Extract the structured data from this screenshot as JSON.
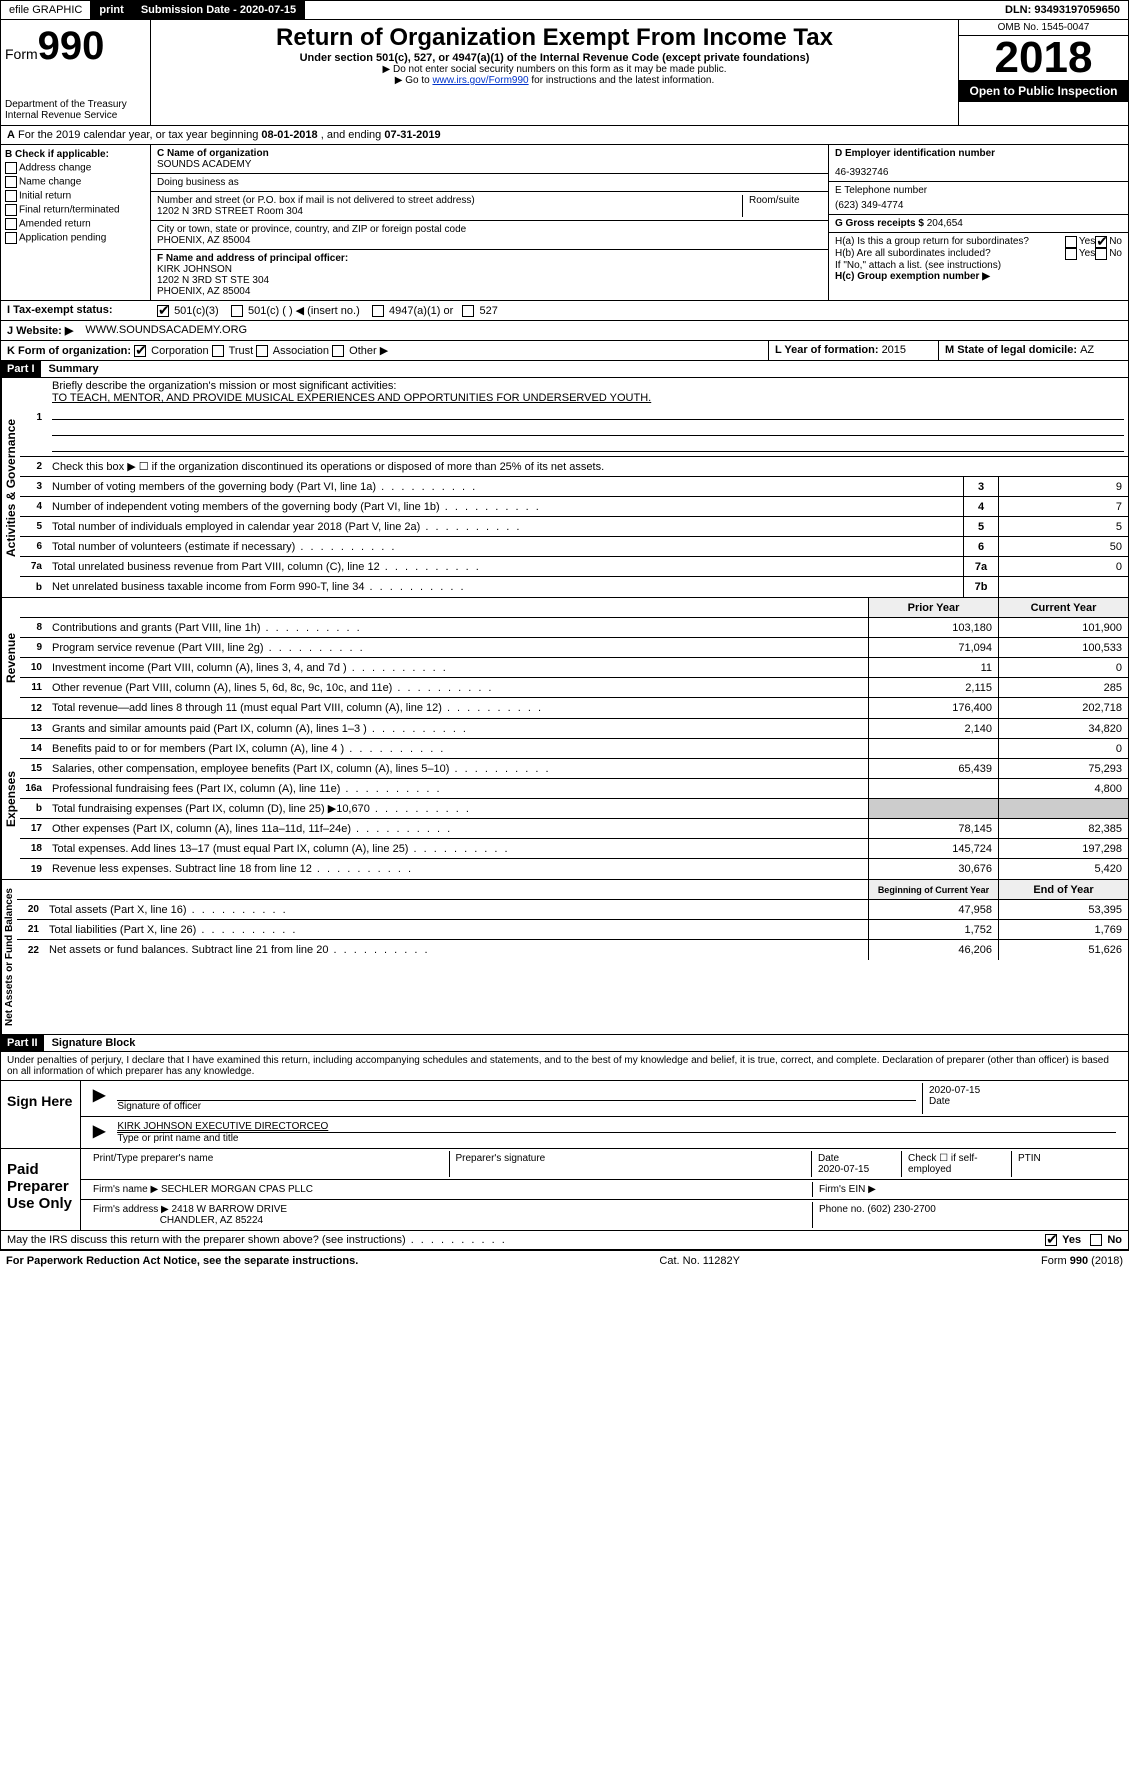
{
  "topbar": {
    "efile": "efile GRAPHIC",
    "print": "print",
    "sub_label": "Submission Date - 2020-07-15",
    "dln": "DLN: 93493197059650"
  },
  "header": {
    "form_word": "Form",
    "form_num": "990",
    "dept": "Department of the Treasury\nInternal Revenue Service",
    "title": "Return of Organization Exempt From Income Tax",
    "sub1": "Under section 501(c), 527, or 4947(a)(1) of the Internal Revenue Code (except private foundations)",
    "sub2": "▶ Do not enter social security numbers on this form as it may be made public.",
    "sub3a": "▶ Go to ",
    "sub3_link": "www.irs.gov/Form990",
    "sub3b": " for instructions and the latest information.",
    "omb": "OMB No. 1545-0047",
    "year": "2018",
    "open": "Open to Public Inspection"
  },
  "sectionA": {
    "text_a": "For the 2019 calendar year, or tax year beginning ",
    "begin": "08-01-2018",
    "text_b": " , and ending ",
    "end": "07-31-2019"
  },
  "checkB": {
    "hdr": "B Check if applicable:",
    "items": [
      "Address change",
      "Name change",
      "Initial return",
      "Final return/terminated",
      "Amended return",
      "Application pending"
    ]
  },
  "entity": {
    "c_label": "C Name of organization",
    "c_name": "SOUNDS ACADEMY",
    "dba_label": "Doing business as",
    "addr_label": "Number and street (or P.O. box if mail is not delivered to street address)",
    "room_label": "Room/suite",
    "addr": "1202 N 3RD STREET Room 304",
    "city_label": "City or town, state or province, country, and ZIP or foreign postal code",
    "city": "PHOENIX, AZ  85004",
    "f_label": "F Name and address of principal officer:",
    "f_name": "KIRK JOHNSON",
    "f_addr1": "1202 N 3RD ST STE 304",
    "f_addr2": "PHOENIX, AZ  85004"
  },
  "right": {
    "d_label": "D Employer identification number",
    "d_val": "46-3932746",
    "e_label": "E Telephone number",
    "e_val": "(623) 349-4774",
    "g_label": "G Gross receipts $ ",
    "g_val": "204,654",
    "ha_label": "H(a)  Is this a group return for subordinates?",
    "hb_label": "H(b)  Are all subordinates included?",
    "hb_note": "If \"No,\" attach a list. (see instructions)",
    "hc_label": "H(c)  Group exemption number ▶",
    "yes": "Yes",
    "no": "No"
  },
  "statusI": {
    "label": "I  Tax-exempt status:",
    "opt1": "501(c)(3)",
    "opt2": "501(c) (   ) ◀ (insert no.)",
    "opt3": "4947(a)(1) or",
    "opt4": "527"
  },
  "websiteJ": {
    "label": "J  Website: ▶",
    "val": "WWW.SOUNDSACADEMY.ORG"
  },
  "rowK": {
    "k_label": "K Form of organization:",
    "k_opts": [
      "Corporation",
      "Trust",
      "Association",
      "Other ▶"
    ],
    "l_label": "L Year of formation: ",
    "l_val": "2015",
    "m_label": "M State of legal domicile: ",
    "m_val": "AZ"
  },
  "part1": {
    "hdr": "Part I",
    "title": "Summary"
  },
  "gov": {
    "vlabel": "Activities & Governance",
    "l1_label": "Briefly describe the organization's mission or most significant activities:",
    "l1_val": "TO TEACH, MENTOR, AND PROVIDE MUSICAL EXPERIENCES AND OPPORTUNITIES FOR UNDERSERVED YOUTH.",
    "l2": "Check this box ▶ ☐  if the organization discontinued its operations or disposed of more than 25% of its net assets.",
    "rows": [
      {
        "n": "3",
        "t": "Number of voting members of the governing body (Part VI, line 1a)",
        "b": "3",
        "v": "9"
      },
      {
        "n": "4",
        "t": "Number of independent voting members of the governing body (Part VI, line 1b)",
        "b": "4",
        "v": "7"
      },
      {
        "n": "5",
        "t": "Total number of individuals employed in calendar year 2018 (Part V, line 2a)",
        "b": "5",
        "v": "5"
      },
      {
        "n": "6",
        "t": "Total number of volunteers (estimate if necessary)",
        "b": "6",
        "v": "50"
      },
      {
        "n": "7a",
        "t": "Total unrelated business revenue from Part VIII, column (C), line 12",
        "b": "7a",
        "v": "0"
      },
      {
        "n": "b",
        "t": "Net unrelated business taxable income from Form 990-T, line 34",
        "b": "7b",
        "v": ""
      }
    ]
  },
  "rev": {
    "vlabel": "Revenue",
    "hdr_prior": "Prior Year",
    "hdr_curr": "Current Year",
    "rows": [
      {
        "n": "8",
        "t": "Contributions and grants (Part VIII, line 1h)",
        "p": "103,180",
        "c": "101,900"
      },
      {
        "n": "9",
        "t": "Program service revenue (Part VIII, line 2g)",
        "p": "71,094",
        "c": "100,533"
      },
      {
        "n": "10",
        "t": "Investment income (Part VIII, column (A), lines 3, 4, and 7d )",
        "p": "11",
        "c": "0"
      },
      {
        "n": "11",
        "t": "Other revenue (Part VIII, column (A), lines 5, 6d, 8c, 9c, 10c, and 11e)",
        "p": "2,115",
        "c": "285"
      },
      {
        "n": "12",
        "t": "Total revenue—add lines 8 through 11 (must equal Part VIII, column (A), line 12)",
        "p": "176,400",
        "c": "202,718"
      }
    ]
  },
  "exp": {
    "vlabel": "Expenses",
    "rows": [
      {
        "n": "13",
        "t": "Grants and similar amounts paid (Part IX, column (A), lines 1–3 )",
        "p": "2,140",
        "c": "34,820"
      },
      {
        "n": "14",
        "t": "Benefits paid to or for members (Part IX, column (A), line 4 )",
        "p": "",
        "c": "0"
      },
      {
        "n": "15",
        "t": "Salaries, other compensation, employee benefits (Part IX, column (A), lines 5–10)",
        "p": "65,439",
        "c": "75,293"
      },
      {
        "n": "16a",
        "t": "Professional fundraising fees (Part IX, column (A), line 11e)",
        "p": "",
        "c": "4,800"
      },
      {
        "n": "b",
        "t": "Total fundraising expenses (Part IX, column (D), line 25) ▶10,670",
        "p": "SHADE",
        "c": "SHADE"
      },
      {
        "n": "17",
        "t": "Other expenses (Part IX, column (A), lines 11a–11d, 11f–24e)",
        "p": "78,145",
        "c": "82,385"
      },
      {
        "n": "18",
        "t": "Total expenses. Add lines 13–17 (must equal Part IX, column (A), line 25)",
        "p": "145,724",
        "c": "197,298"
      },
      {
        "n": "19",
        "t": "Revenue less expenses. Subtract line 18 from line 12",
        "p": "30,676",
        "c": "5,420"
      }
    ]
  },
  "net": {
    "vlabel": "Net Assets or Fund Balances",
    "hdr_beg": "Beginning of Current Year",
    "hdr_end": "End of Year",
    "rows": [
      {
        "n": "20",
        "t": "Total assets (Part X, line 16)",
        "p": "47,958",
        "c": "53,395"
      },
      {
        "n": "21",
        "t": "Total liabilities (Part X, line 26)",
        "p": "1,752",
        "c": "1,769"
      },
      {
        "n": "22",
        "t": "Net assets or fund balances. Subtract line 21 from line 20",
        "p": "46,206",
        "c": "51,626"
      }
    ]
  },
  "part2": {
    "hdr": "Part II",
    "title": "Signature Block"
  },
  "penalty": "Under penalties of perjury, I declare that I have examined this return, including accompanying schedules and statements, and to the best of my knowledge and belief, it is true, correct, and complete. Declaration of preparer (other than officer) is based on all information of which preparer has any knowledge.",
  "sign": {
    "here": "Sign Here",
    "sig_label": "Signature of officer",
    "date": "2020-07-15",
    "date_label": "Date",
    "name": "KIRK JOHNSON EXECUTIVE DIRECTORCEO",
    "name_label": "Type or print name and title"
  },
  "paid": {
    "label": "Paid Preparer Use Only",
    "h1": "Print/Type preparer's name",
    "h2": "Preparer's signature",
    "h3": "Date",
    "h3v": "2020-07-15",
    "h4": "Check ☐ if self-employed",
    "h5": "PTIN",
    "firm_label": "Firm's name    ▶",
    "firm": "SECHLER MORGAN CPAS PLLC",
    "ein_label": "Firm's EIN ▶",
    "addr_label": "Firm's address ▶",
    "addr1": "2418 W BARROW DRIVE",
    "addr2": "CHANDLER, AZ  85224",
    "phone_label": "Phone no. ",
    "phone": "(602) 230-2700"
  },
  "discuss": {
    "q": "May the IRS discuss this return with the preparer shown above? (see instructions)",
    "yes": "Yes",
    "no": "No"
  },
  "footer": {
    "left": "For Paperwork Reduction Act Notice, see the separate instructions.",
    "mid": "Cat. No. 11282Y",
    "right": "Form 990 (2018)"
  }
}
